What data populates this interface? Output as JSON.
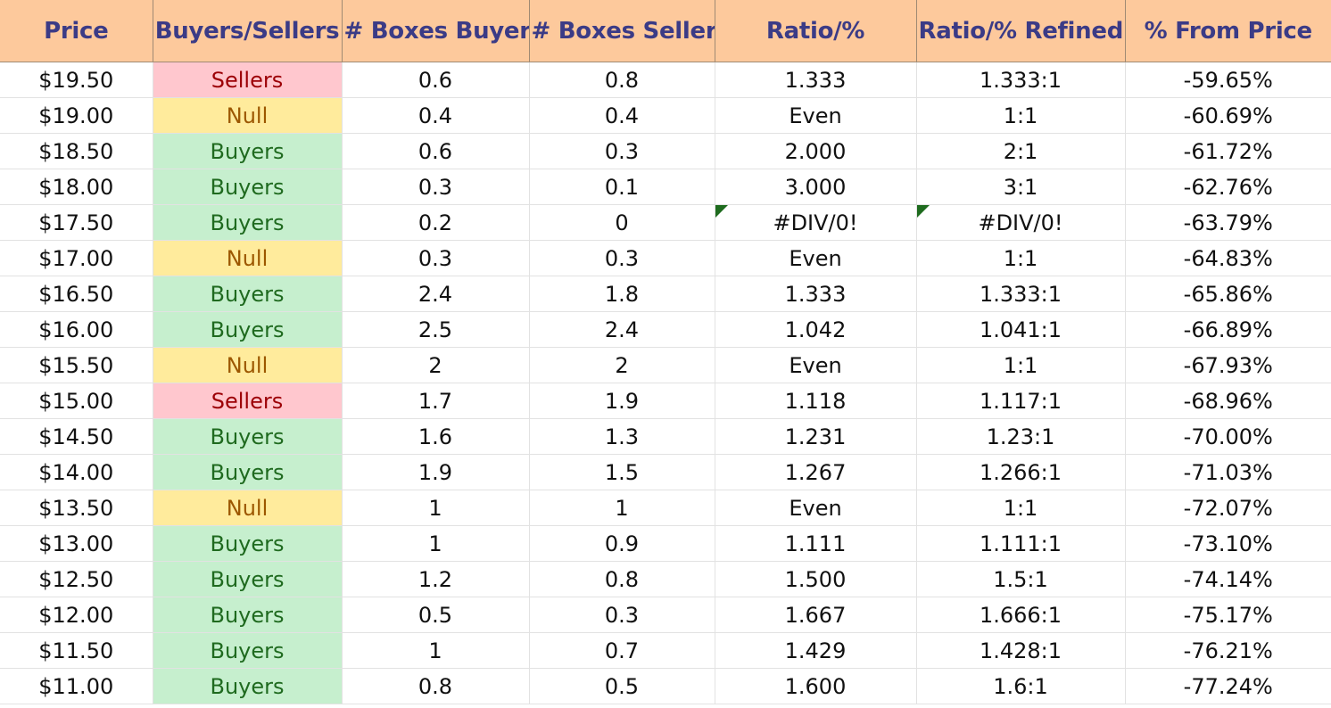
{
  "headers": [
    "Price",
    "Buyers/Sellers",
    "# Boxes Buyers",
    "# Boxes Sellers",
    "Ratio/%",
    "Ratio/% Refined",
    "% From Price"
  ],
  "colors": {
    "header_bg": "#fdc99c",
    "header_text": "#3b3b86",
    "buyers_bg": "#c6efce",
    "buyers_text": "#1f6a1f",
    "sellers_bg": "#ffc7ce",
    "sellers_text": "#9c0006",
    "null_bg": "#ffeb9c",
    "null_text": "#9c5700",
    "error_flag": "#1e6b1e"
  },
  "rows": [
    {
      "price": "$19.50",
      "side": "Sellers",
      "buyers": "0.6",
      "sellers": "0.8",
      "ratio": "1.333",
      "refined": "1.333:1",
      "from_price": "-59.65%",
      "flag": false
    },
    {
      "price": "$19.00",
      "side": "Null",
      "buyers": "0.4",
      "sellers": "0.4",
      "ratio": "Even",
      "refined": "1:1",
      "from_price": "-60.69%",
      "flag": false
    },
    {
      "price": "$18.50",
      "side": "Buyers",
      "buyers": "0.6",
      "sellers": "0.3",
      "ratio": "2.000",
      "refined": "2:1",
      "from_price": "-61.72%",
      "flag": false
    },
    {
      "price": "$18.00",
      "side": "Buyers",
      "buyers": "0.3",
      "sellers": "0.1",
      "ratio": "3.000",
      "refined": "3:1",
      "from_price": "-62.76%",
      "flag": false
    },
    {
      "price": "$17.50",
      "side": "Buyers",
      "buyers": "0.2",
      "sellers": "0",
      "ratio": "#DIV/0!",
      "refined": "#DIV/0!",
      "from_price": "-63.79%",
      "flag": true
    },
    {
      "price": "$17.00",
      "side": "Null",
      "buyers": "0.3",
      "sellers": "0.3",
      "ratio": "Even",
      "refined": "1:1",
      "from_price": "-64.83%",
      "flag": false
    },
    {
      "price": "$16.50",
      "side": "Buyers",
      "buyers": "2.4",
      "sellers": "1.8",
      "ratio": "1.333",
      "refined": "1.333:1",
      "from_price": "-65.86%",
      "flag": false
    },
    {
      "price": "$16.00",
      "side": "Buyers",
      "buyers": "2.5",
      "sellers": "2.4",
      "ratio": "1.042",
      "refined": "1.041:1",
      "from_price": "-66.89%",
      "flag": false
    },
    {
      "price": "$15.50",
      "side": "Null",
      "buyers": "2",
      "sellers": "2",
      "ratio": "Even",
      "refined": "1:1",
      "from_price": "-67.93%",
      "flag": false
    },
    {
      "price": "$15.00",
      "side": "Sellers",
      "buyers": "1.7",
      "sellers": "1.9",
      "ratio": "1.118",
      "refined": "1.117:1",
      "from_price": "-68.96%",
      "flag": false
    },
    {
      "price": "$14.50",
      "side": "Buyers",
      "buyers": "1.6",
      "sellers": "1.3",
      "ratio": "1.231",
      "refined": "1.23:1",
      "from_price": "-70.00%",
      "flag": false
    },
    {
      "price": "$14.00",
      "side": "Buyers",
      "buyers": "1.9",
      "sellers": "1.5",
      "ratio": "1.267",
      "refined": "1.266:1",
      "from_price": "-71.03%",
      "flag": false
    },
    {
      "price": "$13.50",
      "side": "Null",
      "buyers": "1",
      "sellers": "1",
      "ratio": "Even",
      "refined": "1:1",
      "from_price": "-72.07%",
      "flag": false
    },
    {
      "price": "$13.00",
      "side": "Buyers",
      "buyers": "1",
      "sellers": "0.9",
      "ratio": "1.111",
      "refined": "1.111:1",
      "from_price": "-73.10%",
      "flag": false
    },
    {
      "price": "$12.50",
      "side": "Buyers",
      "buyers": "1.2",
      "sellers": "0.8",
      "ratio": "1.500",
      "refined": "1.5:1",
      "from_price": "-74.14%",
      "flag": false
    },
    {
      "price": "$12.00",
      "side": "Buyers",
      "buyers": "0.5",
      "sellers": "0.3",
      "ratio": "1.667",
      "refined": "1.666:1",
      "from_price": "-75.17%",
      "flag": false
    },
    {
      "price": "$11.50",
      "side": "Buyers",
      "buyers": "1",
      "sellers": "0.7",
      "ratio": "1.429",
      "refined": "1.428:1",
      "from_price": "-76.21%",
      "flag": false
    },
    {
      "price": "$11.00",
      "side": "Buyers",
      "buyers": "0.8",
      "sellers": "0.5",
      "ratio": "1.600",
      "refined": "1.6:1",
      "from_price": "-77.24%",
      "flag": false
    }
  ]
}
